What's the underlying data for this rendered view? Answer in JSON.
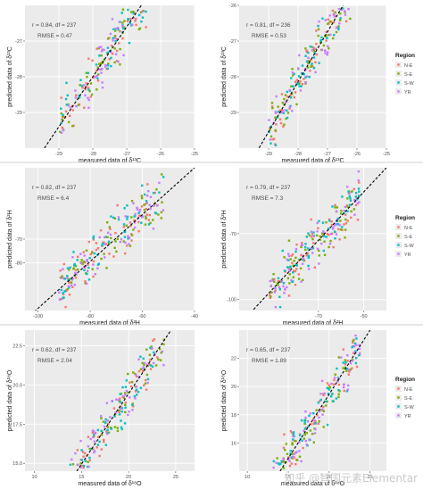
{
  "colors": {
    "panel_bg": "#ebebeb",
    "grid": "#ffffff",
    "fit_line": "#000000",
    "axis_text": "#4d4d4d",
    "divider": "#cfcfcf",
    "N-E": "#f8766d",
    "S-E": "#7cae00",
    "S-W": "#00bfc4",
    "YR": "#c77cff"
  },
  "legend": {
    "title": "Region",
    "items": [
      {
        "label": "N-E",
        "color": "#f8766d"
      },
      {
        "label": "S-E",
        "color": "#7cae00"
      },
      {
        "label": "S-W",
        "color": "#00bfc4"
      },
      {
        "label": "YR",
        "color": "#c77cff"
      }
    ]
  },
  "watermark": "知乎 @智国元素Elementar",
  "chart_data": [
    {
      "type": "scatter",
      "panel": "top-left",
      "xlabel": "measured data of δ¹³C",
      "ylabel": "predicted data of δ¹³C",
      "stats": [
        "r = 0.84, df = 237",
        "RMSE = 0.47"
      ],
      "xlim": [
        -30,
        -25
      ],
      "ylim": [
        -30,
        -26
      ],
      "xticks": [
        "-29",
        "-28",
        "-27",
        "-26",
        "-25"
      ],
      "yticks": [
        "-27",
        "-28",
        "-29"
      ],
      "ytick_values": [
        -27,
        -28,
        -29
      ],
      "xtick_values": [
        -29,
        -28,
        -27,
        -26,
        -25
      ],
      "fit_line": [
        [
          -29.5,
          -30.1
        ],
        [
          -26.5,
          -25.9
        ]
      ],
      "legend": false,
      "points_per_region": 60,
      "seed": 11
    },
    {
      "type": "scatter",
      "panel": "top-right",
      "xlabel": "measured data of δ¹³C",
      "ylabel": "predicted data of δ¹³C",
      "stats": [
        "r = 0.81, df = 236",
        "RMSE = 0.53"
      ],
      "xlim": [
        -30,
        -25
      ],
      "ylim": [
        -30,
        -26
      ],
      "xticks": [
        "-29",
        "-28",
        "-27",
        "-26",
        "-25"
      ],
      "yticks": [
        "-26",
        "-27",
        "-28",
        "-29"
      ],
      "ytick_values": [
        -26,
        -27,
        -28,
        -29
      ],
      "xtick_values": [
        -29,
        -28,
        -27,
        -26,
        -25
      ],
      "fit_line": [
        [
          -29.4,
          -30.1
        ],
        [
          -26.4,
          -25.9
        ]
      ],
      "legend": true,
      "points_per_region": 60,
      "seed": 23
    },
    {
      "type": "scatter",
      "panel": "middle-left",
      "xlabel": "measured data of δ²H",
      "ylabel": "predicted data of δ²H",
      "stats": [
        "r = 0.82, df = 237",
        "RMSE = 6.4"
      ],
      "xlim": [
        -105,
        -40
      ],
      "ylim": [
        -100,
        -40
      ],
      "xticks": [
        "-100",
        "-80",
        "-60",
        "-40"
      ],
      "yticks": [
        "-70",
        "-80"
      ],
      "ytick_values": [
        -70,
        -80
      ],
      "xtick_values": [
        -100,
        -80,
        -60,
        -40
      ],
      "fit_line": [
        [
          -104,
          -103
        ],
        [
          -40,
          -40
        ]
      ],
      "legend": false,
      "points_per_region": 60,
      "seed": 37
    },
    {
      "type": "scatter",
      "panel": "middle-right",
      "xlabel": "measured data of δ²H",
      "ylabel": "predicted data of δ²H",
      "stats": [
        "r = 0.79, df = 237",
        "RMSE = 7.3"
      ],
      "xlim": [
        -105,
        -40
      ],
      "ylim": [
        -105,
        -40
      ],
      "xticks": [
        "-70",
        "-50"
      ],
      "yticks": [
        "-70",
        "-100"
      ],
      "ytick_values": [
        -70,
        -100
      ],
      "xtick_values": [
        -70,
        -50
      ],
      "fit_line": [
        [
          -100,
          -106
        ],
        [
          -40,
          -40
        ]
      ],
      "legend": true,
      "points_per_region": 60,
      "seed": 41
    },
    {
      "type": "scatter",
      "panel": "bottom-left",
      "xlabel": "measured data of δ¹⁸O",
      "ylabel": "predicted data of δ¹⁸O",
      "stats": [
        "r = 0.62, df = 237",
        "RMSE = 2.04"
      ],
      "xlim": [
        9,
        27
      ],
      "ylim": [
        14.5,
        23.5
      ],
      "xticks": [
        "10",
        "15",
        "20",
        "25"
      ],
      "yticks": [
        "22.5",
        "20.0",
        "17.5",
        "15.0"
      ],
      "ytick_values": [
        22.5,
        20.0,
        17.5,
        15.0
      ],
      "xtick_values": [
        10,
        15,
        20,
        25
      ],
      "fit_line": [
        [
          14.5,
          14.5
        ],
        [
          24.5,
          23.5
        ]
      ],
      "legend": false,
      "points_per_region": 60,
      "seed": 53
    },
    {
      "type": "scatter",
      "panel": "bottom-right",
      "xlabel": "measured data of δ¹⁸O",
      "ylabel": "predicted data of δ¹⁸O",
      "stats": [
        "r = 0.65, df = 237",
        "RMSE = 1.89"
      ],
      "xlim": [
        9,
        27
      ],
      "ylim": [
        14,
        24
      ],
      "xticks": [
        "10",
        "15",
        "20",
        "25"
      ],
      "yticks": [
        "22",
        "20",
        "18",
        "16"
      ],
      "ytick_values": [
        22,
        20,
        18,
        16
      ],
      "xtick_values": [
        10,
        15,
        20,
        25
      ],
      "fit_line": [
        [
          14,
          14
        ],
        [
          25,
          24
        ]
      ],
      "legend": true,
      "points_per_region": 60,
      "seed": 67
    }
  ]
}
